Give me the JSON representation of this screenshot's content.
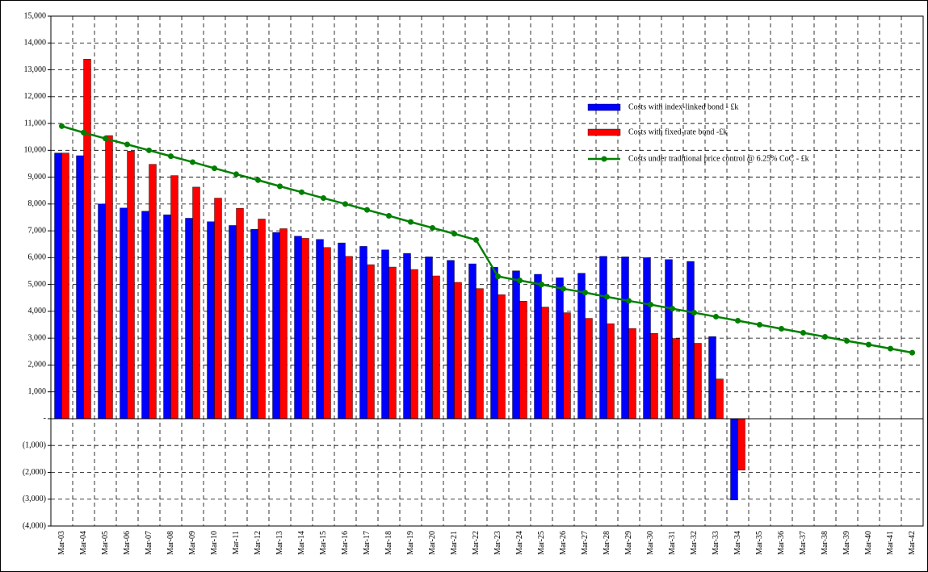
{
  "chart_data": {
    "type": "bar",
    "categories": [
      "Mar-03",
      "Mar-04",
      "Mar-05",
      "Mar-06",
      "Mar-07",
      "Mar-08",
      "Mar-09",
      "Mar-10",
      "Mar-11",
      "Mar-12",
      "Mar-13",
      "Mar-14",
      "Mar-15",
      "Mar-16",
      "Mar-17",
      "Mar-18",
      "Mar-19",
      "Mar-20",
      "Mar-21",
      "Mar-22",
      "Mar-23",
      "Mar-24",
      "Mar-25",
      "Mar-26",
      "Mar-27",
      "Mar-28",
      "Mar-29",
      "Mar-30",
      "Mar-31",
      "Mar-32",
      "Mar-33",
      "Mar-34",
      "Mar-35",
      "Mar-36",
      "Mar-37",
      "Mar-38",
      "Mar-39",
      "Mar-40",
      "Mar-41",
      "Mar-42"
    ],
    "series": [
      {
        "name": "Costs with index-linked bond - £k",
        "color": "#0000ff",
        "type": "bar",
        "values": [
          9900,
          9800,
          8000,
          7850,
          7730,
          7600,
          7470,
          7340,
          7200,
          7060,
          6940,
          6800,
          6680,
          6550,
          6420,
          6290,
          6160,
          6030,
          5900,
          5770,
          5640,
          5510,
          5380,
          5250,
          5420,
          6050,
          6030,
          6000,
          5930,
          5860,
          3060,
          -3030,
          null,
          null,
          null,
          null,
          null,
          null,
          null,
          null
        ]
      },
      {
        "name": "Costs with fixed-rate bond -£k",
        "color": "#ff0000",
        "type": "bar",
        "values": [
          9900,
          13400,
          10550,
          9970,
          9480,
          9060,
          8630,
          8220,
          7840,
          7440,
          7080,
          6720,
          6380,
          6050,
          5740,
          5650,
          5560,
          5320,
          5080,
          4850,
          4620,
          4380,
          4160,
          3950,
          3740,
          3540,
          3360,
          3180,
          2990,
          2810,
          1480,
          -1920,
          null,
          null,
          null,
          null,
          null,
          null,
          null,
          null
        ]
      },
      {
        "name": "Costs under traditional price control @ 6.25% CoC - £k",
        "color": "#008000",
        "type": "line",
        "values": [
          10900,
          10660,
          10440,
          10220,
          10000,
          9780,
          9560,
          9330,
          9110,
          8890,
          8660,
          8440,
          8220,
          8000,
          7780,
          7560,
          7330,
          7110,
          6890,
          6660,
          5300,
          5150,
          5000,
          4840,
          4700,
          4540,
          4390,
          4250,
          4100,
          3950,
          3800,
          3650,
          3500,
          3350,
          3200,
          3050,
          2900,
          2760,
          2610,
          2460
        ]
      }
    ],
    "ylim": [
      -4000,
      15000
    ],
    "yticks": [
      {
        "value": -4000,
        "label": "(4,000)"
      },
      {
        "value": -3000,
        "label": "(3,000)"
      },
      {
        "value": -2000,
        "label": "(2,000)"
      },
      {
        "value": -1000,
        "label": "(1,000)"
      },
      {
        "value": 0,
        "label": "-"
      },
      {
        "value": 1000,
        "label": "1,000"
      },
      {
        "value": 2000,
        "label": "2,000"
      },
      {
        "value": 3000,
        "label": "3,000"
      },
      {
        "value": 4000,
        "label": "4,000"
      },
      {
        "value": 5000,
        "label": "5,000"
      },
      {
        "value": 6000,
        "label": "6,000"
      },
      {
        "value": 7000,
        "label": "7,000"
      },
      {
        "value": 8000,
        "label": "8,000"
      },
      {
        "value": 9000,
        "label": "9,000"
      },
      {
        "value": 10000,
        "label": "10,000"
      },
      {
        "value": 11000,
        "label": "11,000"
      },
      {
        "value": 12000,
        "label": "12,000"
      },
      {
        "value": 13000,
        "label": "13,000"
      },
      {
        "value": 14000,
        "label": "14,000"
      },
      {
        "value": 15000,
        "label": "15,000"
      }
    ],
    "grid": true
  }
}
